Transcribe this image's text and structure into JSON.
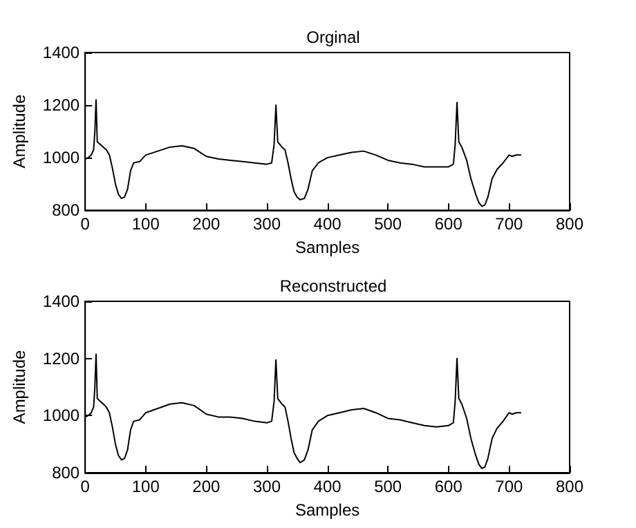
{
  "chart_data": [
    {
      "type": "line",
      "title": "Orginal",
      "xlabel": "Samples",
      "ylabel": "Amplitude",
      "color": "#000000",
      "xlim": [
        0,
        800
      ],
      "xticks": [
        0,
        100,
        200,
        300,
        400,
        500,
        600,
        700,
        800
      ],
      "ylim": [
        800,
        1400
      ],
      "yticks": [
        800,
        1000,
        1200,
        1400
      ],
      "x": [
        0,
        5,
        10,
        14,
        16,
        18,
        20,
        25,
        30,
        35,
        40,
        45,
        50,
        55,
        60,
        65,
        70,
        75,
        80,
        90,
        100,
        120,
        140,
        160,
        180,
        200,
        220,
        240,
        260,
        280,
        300,
        308,
        312,
        315,
        318,
        325,
        330,
        335,
        340,
        345,
        350,
        355,
        362,
        368,
        375,
        385,
        400,
        420,
        440,
        460,
        480,
        500,
        520,
        540,
        560,
        580,
        600,
        608,
        611,
        614,
        617,
        622,
        630,
        637,
        645,
        650,
        655,
        660,
        665,
        672,
        680,
        690,
        700,
        705,
        712,
        720
      ],
      "values": [
        995,
        1000,
        1010,
        1030,
        1100,
        1220,
        1060,
        1050,
        1040,
        1030,
        1010,
        960,
        900,
        860,
        845,
        850,
        880,
        950,
        980,
        985,
        1010,
        1025,
        1040,
        1045,
        1035,
        1005,
        995,
        990,
        985,
        980,
        975,
        980,
        1050,
        1200,
        1060,
        1040,
        1030,
        980,
        920,
        870,
        850,
        840,
        845,
        880,
        950,
        980,
        1000,
        1010,
        1020,
        1025,
        1010,
        990,
        980,
        975,
        965,
        965,
        965,
        975,
        1050,
        1210,
        1060,
        1040,
        990,
        920,
        860,
        830,
        815,
        820,
        850,
        920,
        955,
        980,
        1010,
        1005,
        1010,
        1010
      ]
    },
    {
      "type": "line",
      "title": "Reconstructed",
      "xlabel": "Samples",
      "ylabel": "Amplitude",
      "color": "#000000",
      "xlim": [
        0,
        800
      ],
      "xticks": [
        0,
        100,
        200,
        300,
        400,
        500,
        600,
        700,
        800
      ],
      "ylim": [
        800,
        1400
      ],
      "yticks": [
        800,
        1000,
        1200,
        1400
      ],
      "x": [
        0,
        5,
        10,
        14,
        16,
        18,
        20,
        25,
        30,
        35,
        40,
        45,
        50,
        55,
        60,
        65,
        70,
        75,
        80,
        90,
        100,
        120,
        140,
        160,
        180,
        200,
        220,
        240,
        260,
        280,
        300,
        308,
        312,
        315,
        318,
        325,
        330,
        335,
        340,
        345,
        350,
        355,
        362,
        368,
        375,
        385,
        400,
        420,
        440,
        460,
        480,
        500,
        520,
        540,
        560,
        580,
        600,
        608,
        611,
        614,
        617,
        622,
        630,
        637,
        645,
        650,
        655,
        660,
        665,
        672,
        680,
        690,
        700,
        705,
        712,
        720
      ],
      "values": [
        995,
        1000,
        1010,
        1030,
        1100,
        1215,
        1060,
        1050,
        1040,
        1030,
        1010,
        960,
        900,
        860,
        845,
        850,
        880,
        950,
        980,
        985,
        1010,
        1025,
        1040,
        1045,
        1035,
        1005,
        995,
        995,
        990,
        980,
        975,
        980,
        1050,
        1195,
        1060,
        1040,
        1030,
        980,
        920,
        870,
        850,
        835,
        845,
        880,
        950,
        980,
        1000,
        1010,
        1020,
        1025,
        1010,
        990,
        985,
        975,
        965,
        960,
        965,
        975,
        1050,
        1200,
        1060,
        1040,
        990,
        920,
        860,
        830,
        815,
        820,
        850,
        920,
        955,
        980,
        1010,
        1005,
        1010,
        1010
      ]
    }
  ]
}
